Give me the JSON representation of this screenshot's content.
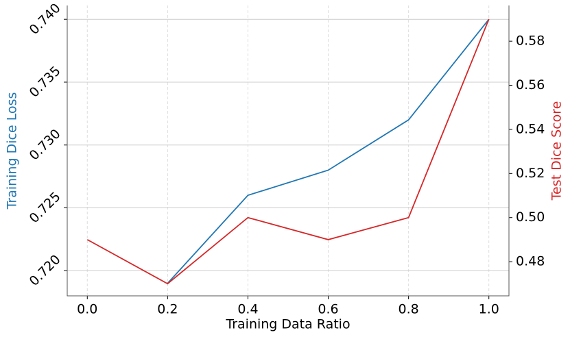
{
  "chart_data": {
    "type": "line",
    "x_label": "Training Data Ratio",
    "y_label": "Training Dice Loss",
    "y2_label": "Test Dice Score",
    "x": [
      0.0,
      0.2,
      0.4,
      0.6,
      0.8,
      1.0
    ],
    "series": [
      {
        "name": "Training Dice Loss",
        "color": "#1f77b4",
        "values": [
          null,
          0.719,
          0.726,
          0.728,
          0.732,
          0.74
        ]
      },
      {
        "name": "Test Dice Score",
        "color": "#d62728",
        "axis": "y2",
        "values": [
          0.49,
          0.47,
          0.5,
          0.49,
          0.5,
          0.59
        ]
      }
    ],
    "xlim": [
      -0.05,
      1.05
    ],
    "xticks": [
      {
        "value": 0,
        "label": "0.0"
      },
      0.2,
      0.4,
      0.6,
      0.8,
      {
        "value": 1,
        "label": "1.0"
      }
    ],
    "ylim": [
      0.718,
      0.7411
    ],
    "yticks": [
      {
        "value": 0.72,
        "label": "0.720"
      },
      0.725,
      {
        "value": 0.73,
        "label": "0.730"
      },
      0.735,
      {
        "value": 0.74,
        "label": "0.740"
      }
    ],
    "y2lim": [
      0.4645,
      0.5962
    ],
    "y2ticks": [
      0.48,
      {
        "value": 0.5,
        "label": "0.50"
      },
      0.52,
      0.54,
      0.56,
      0.58
    ],
    "grid": true
  }
}
